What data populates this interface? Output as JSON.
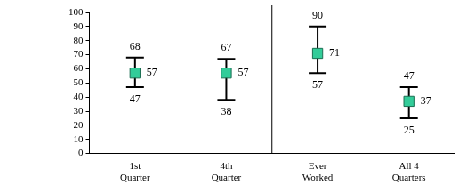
{
  "chart_data": {
    "type": "errorbar",
    "categories": [
      "1st Quarter",
      "4th Quarter",
      "Ever Worked",
      "All 4 Quarters"
    ],
    "values": [
      57,
      57,
      71,
      37
    ],
    "low": [
      47,
      38,
      57,
      25
    ],
    "high": [
      68,
      67,
      90,
      47
    ],
    "color": "#33cc99",
    "marker": "square",
    "ylim": [
      0,
      100
    ],
    "yticks": [
      0,
      10,
      20,
      30,
      40,
      50,
      60,
      70,
      80,
      90,
      100
    ],
    "grid": false,
    "data_labels": true
  }
}
